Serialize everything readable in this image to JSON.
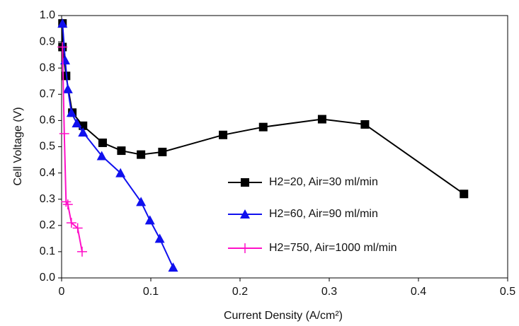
{
  "chart_data": {
    "type": "line",
    "x_label": "Current Density (A/cm²)",
    "y_label": "Cell Voltage (V)",
    "xlim": [
      0,
      0.5
    ],
    "xticks": [
      0,
      0.1,
      0.2,
      0.3,
      0.4,
      0.5
    ],
    "ylim": [
      0,
      1
    ],
    "yticks": [
      {
        "value": 0,
        "label": "0.0"
      },
      0.1,
      0.2,
      0.3,
      0.4,
      0.5,
      0.6,
      0.7,
      0.8,
      0.9,
      {
        "value": 1,
        "label": "1.0"
      }
    ],
    "series": [
      {
        "name": "H2=20, Air=30 ml/min",
        "color": "#000000",
        "marker": "square",
        "x": [
          0.001,
          0.001,
          0.005,
          0.012,
          0.024,
          0.046,
          0.067,
          0.089,
          0.113,
          0.181,
          0.226,
          0.292,
          0.34,
          0.451
        ],
        "values": [
          0.97,
          0.88,
          0.77,
          0.63,
          0.58,
          0.515,
          0.485,
          0.47,
          0.48,
          0.545,
          0.575,
          0.605,
          0.585,
          0.32
        ]
      },
      {
        "name": "H2=60, Air=90 ml/min",
        "color": "#1010ee",
        "marker": "triangle",
        "x": [
          0.001,
          0.004,
          0.007,
          0.011,
          0.017,
          0.024,
          0.045,
          0.066,
          0.089,
          0.099,
          0.11,
          0.125
        ],
        "values": [
          0.97,
          0.83,
          0.72,
          0.63,
          0.59,
          0.555,
          0.465,
          0.4,
          0.29,
          0.22,
          0.15,
          0.04
        ]
      },
      {
        "name": "H2=750, Air=1000 ml/min",
        "color": "#ff10c8",
        "marker": "plus",
        "x": [
          0.001,
          0.003,
          0.005,
          0.007,
          0.011,
          0.018,
          0.023
        ],
        "values": [
          0.88,
          0.55,
          0.29,
          0.28,
          0.21,
          0.19,
          0.1
        ]
      }
    ]
  }
}
